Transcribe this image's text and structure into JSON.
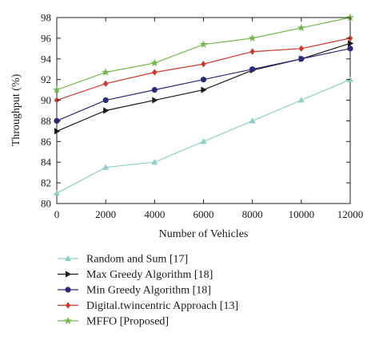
{
  "chart_data": {
    "type": "line",
    "title": "",
    "xlabel": "Number of Vehicles",
    "ylabel": "Throughput (%)",
    "x": [
      0,
      2000,
      4000,
      6000,
      8000,
      10000,
      12000
    ],
    "xticks": [
      "0",
      "2000",
      "4000",
      "6000",
      "8000",
      "10000",
      "12000"
    ],
    "yticks": [
      "80",
      "82",
      "84",
      "86",
      "88",
      "90",
      "92",
      "94",
      "96",
      "98"
    ],
    "xlim": [
      0,
      12000
    ],
    "ylim": [
      80,
      98
    ],
    "grid": false,
    "legend_position": "below",
    "series": [
      {
        "name": "Random and Sum [17]",
        "color": "#8fd0c6",
        "marker": "triangle-up",
        "values": [
          81,
          83.5,
          84,
          86,
          88,
          90,
          92
        ]
      },
      {
        "name": "Max Greedy Algorithm [18]",
        "color": "#1a1a1a",
        "marker": "triangle-right",
        "values": [
          87,
          89,
          90,
          91,
          92.9,
          94,
          95.5
        ]
      },
      {
        "name": "Min Greedy Algorithm [18]",
        "color": "#2b2a7a",
        "marker": "circle",
        "values": [
          88,
          90,
          91,
          92,
          93,
          94,
          95
        ]
      },
      {
        "name": "Digital.twincentric Approach [13]",
        "color": "#d03a2a",
        "marker": "diamond",
        "values": [
          90,
          91.6,
          92.7,
          93.5,
          94.7,
          95,
          96
        ]
      },
      {
        "name": "MFFO [Proposed]",
        "color": "#74b84a",
        "marker": "star",
        "values": [
          91,
          92.7,
          93.6,
          95.4,
          96,
          97,
          98
        ]
      }
    ]
  }
}
